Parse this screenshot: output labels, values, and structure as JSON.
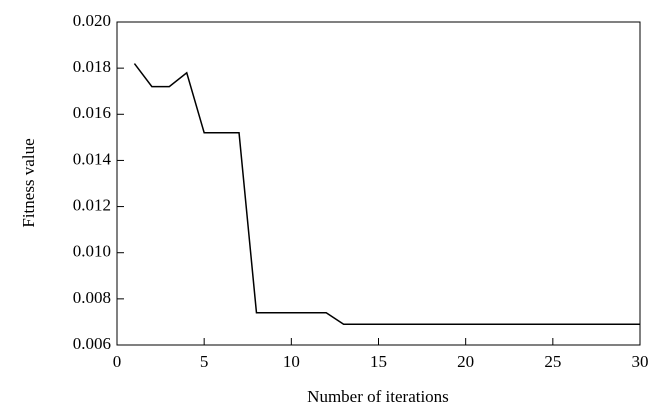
{
  "chart_data": {
    "type": "line",
    "x_label": "Number of iterations",
    "y_label": "Fitness value",
    "x": [
      1,
      2,
      3,
      4,
      5,
      6,
      7,
      8,
      9,
      10,
      11,
      12,
      13,
      14,
      15,
      16,
      17,
      18,
      19,
      20,
      21,
      22,
      23,
      24,
      25,
      26,
      27,
      28,
      29,
      30
    ],
    "series": [
      {
        "color": "#000000",
        "values": [
          0.0182,
          0.0172,
          0.0172,
          0.0178,
          0.0152,
          0.0152,
          0.0152,
          0.0074,
          0.0074,
          0.0074,
          0.0074,
          0.0074,
          0.0069,
          0.0069,
          0.0069,
          0.0069,
          0.0069,
          0.0069,
          0.0069,
          0.0069,
          0.0069,
          0.0069,
          0.0069,
          0.0069,
          0.0069,
          0.0069,
          0.0069,
          0.0069,
          0.0069,
          0.0069
        ]
      }
    ],
    "xlim": [
      0,
      30
    ],
    "xticks": [
      0,
      5,
      10,
      15,
      20,
      25,
      30
    ],
    "ylim": [
      0.006,
      0.02
    ],
    "yticks": [
      0.006,
      0.008,
      {
        "value": 0.01,
        "label": "0.010"
      },
      0.012,
      0.014,
      0.016,
      0.018,
      {
        "value": 0.02,
        "label": "0.020"
      }
    ]
  }
}
